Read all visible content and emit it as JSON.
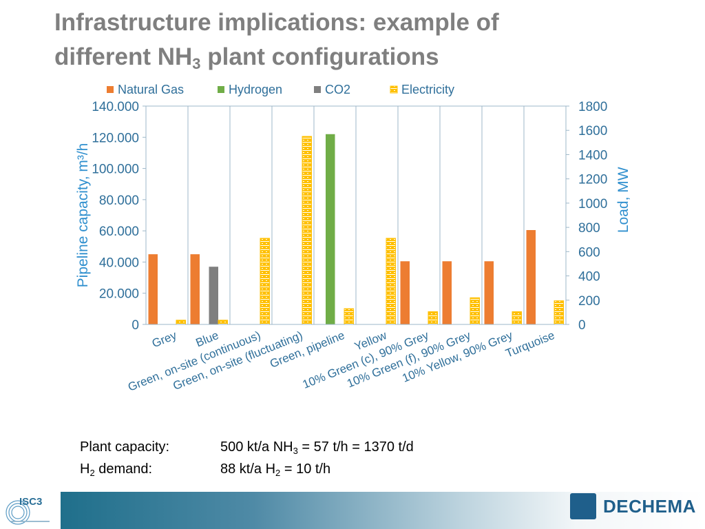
{
  "slide": {
    "title_line1": "Infrastructure implications: example of",
    "title_line2_pre": "different NH",
    "title_line2_sub": "3",
    "title_line2_post": " plant configurations"
  },
  "info": {
    "row1_label": "Plant capacity:",
    "row1_value_pre": "500 kt/a NH",
    "row1_value_sub": "3",
    "row1_value_post": " = 57 t/h = 1370 t/d",
    "row2_label_pre": "H",
    "row2_label_sub": "2",
    "row2_label_post": " demand:",
    "row2_value_pre": "88 kt/a H",
    "row2_value_sub": "2",
    "row2_value_post": " = 10 t/h"
  },
  "footer": {
    "left_logo_text": "ISC3",
    "right_logo_text": "DECHEMA"
  },
  "chart_data": {
    "type": "bar",
    "categories": [
      "Grey",
      "Blue",
      "Green, on-site (continuous)",
      "Green, on-site (fluctuating)",
      "Green, pipeline",
      "Yellow",
      "10% Green (c), 90% Grey",
      "10% Green (f), 90% Grey",
      "10% Yellow, 90% Grey",
      "Turquoise"
    ],
    "ylabel": "Pipeline capacity, m³/h",
    "y2label": "Load, MW",
    "ylim": [
      0,
      140000
    ],
    "y2lim": [
      0,
      1800
    ],
    "yticks": [
      "0",
      "20.000",
      "40.000",
      "60.000",
      "80.000",
      "100.000",
      "120.000",
      "140.000"
    ],
    "y2ticks": [
      "0",
      "200",
      "400",
      "600",
      "800",
      "1000",
      "1200",
      "1400",
      "1600",
      "1800"
    ],
    "legend_position": "top",
    "series": [
      {
        "name": "Natural Gas",
        "axis": "left",
        "color": "#ed7d31",
        "values": [
          45000,
          45000,
          0,
          0,
          0,
          0,
          40500,
          40500,
          40500,
          60500
        ]
      },
      {
        "name": "Hydrogen",
        "axis": "left",
        "color": "#70ad47",
        "values": [
          0,
          0,
          0,
          0,
          122000,
          0,
          0,
          0,
          0,
          0
        ]
      },
      {
        "name": "CO2",
        "axis": "left",
        "color": "#7f7f7f",
        "values": [
          0,
          37000,
          0,
          0,
          0,
          0,
          0,
          0,
          0,
          0
        ]
      },
      {
        "name": "Electricity",
        "axis": "right",
        "color": "#ffc000",
        "values": [
          35,
          35,
          710,
          1550,
          130,
          710,
          105,
          220,
          105,
          195
        ]
      }
    ]
  }
}
